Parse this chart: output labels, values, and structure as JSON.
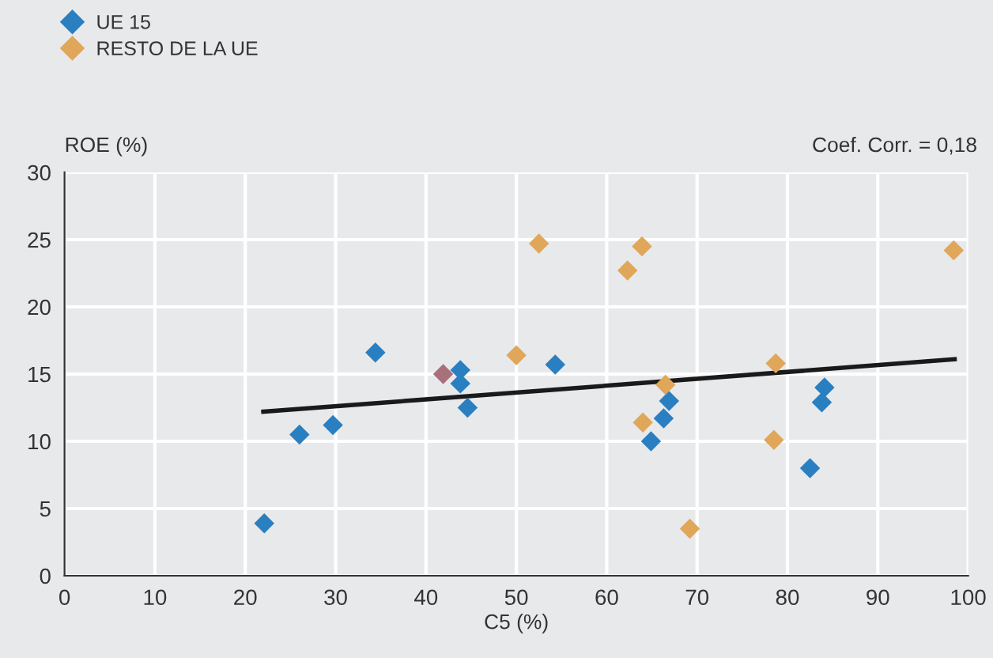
{
  "chart_data": {
    "type": "scatter",
    "xlabel": "C5 (%)",
    "ylabel": "ROE (%)",
    "annotations": [
      "Coef. Corr. = 0,18"
    ],
    "xlim": [
      0,
      100
    ],
    "xticks": [
      0,
      10,
      20,
      30,
      40,
      50,
      60,
      70,
      80,
      90,
      100
    ],
    "ylim": [
      0,
      30
    ],
    "yticks": [
      0,
      5,
      10,
      15,
      20,
      25,
      30
    ],
    "grid": true,
    "legend": "top left",
    "series": [
      {
        "name": "UE 15",
        "color": "#2a7fc0",
        "marker": "diamond",
        "x": [
          22.1,
          26.0,
          29.7,
          34.4,
          43.8,
          43.8,
          44.6,
          54.3,
          66.9,
          66.3,
          64.9,
          82.5,
          84.1,
          83.8
        ],
        "values": [
          3.9,
          10.5,
          11.2,
          16.6,
          15.3,
          14.3,
          12.5,
          15.7,
          13.0,
          11.7,
          10.0,
          8.0,
          14.0,
          12.9
        ]
      },
      {
        "name": "RESTO DE LA UE",
        "color": "#e0a65a",
        "marker": "diamond",
        "x": [
          50.0,
          52.5,
          63.9,
          62.3,
          98.4,
          78.7,
          66.5,
          64.0,
          78.5,
          69.2
        ],
        "values": [
          16.4,
          24.7,
          24.5,
          22.7,
          24.2,
          15.8,
          14.2,
          11.4,
          10.1,
          3.5
        ]
      },
      {
        "color": "#a8707a",
        "marker": "diamond",
        "x": [
          41.9
        ],
        "values": [
          15.0
        ]
      },
      {
        "type": "line",
        "color": "#1a1a1a",
        "x": [
          22.0,
          98.5
        ],
        "values": [
          12.2,
          16.1
        ]
      }
    ]
  }
}
